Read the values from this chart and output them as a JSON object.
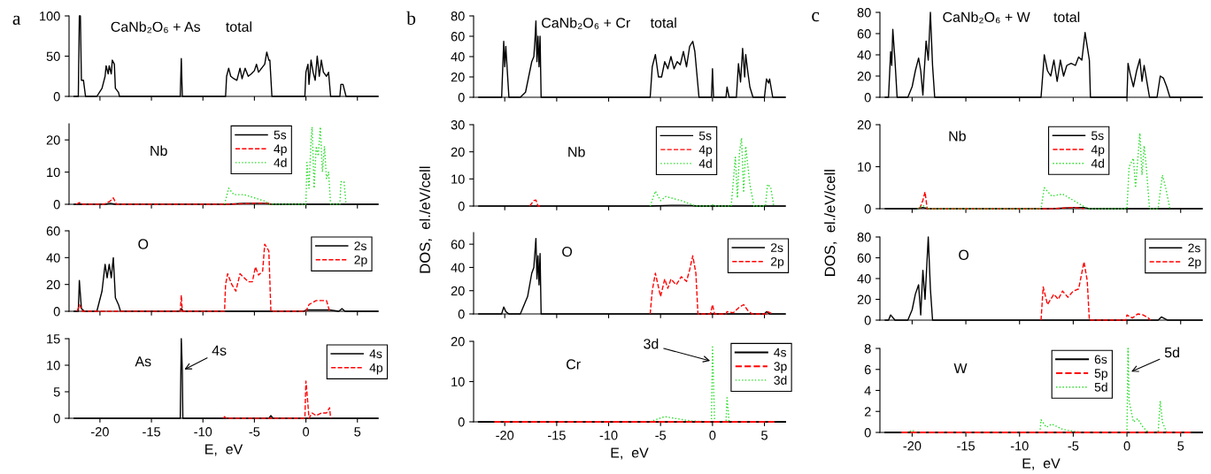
{
  "chart_data": [
    {
      "type": "line",
      "xlim": [
        -23,
        7
      ],
      "xticks": [
        -20,
        -15,
        -10,
        -5,
        0,
        5
      ],
      "ylim": [
        0,
        100
      ],
      "yticks": [
        0,
        50,
        100
      ],
      "tick_labels": "y",
      "annotations": [
        "a",
        "CaNb₂O₆ + As",
        "total"
      ],
      "series": [
        {
          "color": "#000000",
          "line_style": "solid",
          "x": [
            -22.5,
            -22.1,
            -22.0,
            -21.9,
            -21.8,
            -21.6,
            -21.4,
            -20.3,
            -19.8,
            -19.5,
            -19.4,
            -19.2,
            -19.1,
            -18.9,
            -18.8,
            -18.6,
            -18.5,
            -18.2,
            -18.1,
            -12.2,
            -12.1,
            -12.0,
            -7.8,
            -7.7,
            -7.5,
            -7.3,
            -7.0,
            -6.7,
            -6.4,
            -6.2,
            -5.9,
            -5.6,
            -5.3,
            -5.0,
            -4.8,
            -4.6,
            -4.3,
            -4.0,
            -3.8,
            -3.6,
            -3.5,
            -3.3,
            -0.1,
            0.0,
            0.2,
            0.3,
            0.5,
            0.7,
            0.9,
            1.1,
            1.3,
            1.5,
            1.7,
            2.0,
            2.2,
            2.4,
            3.3,
            3.4,
            3.6,
            3.9,
            7
          ],
          "values": [
            0,
            0,
            100,
            100,
            20,
            20,
            0,
            0,
            10,
            25,
            38,
            28,
            38,
            28,
            45,
            40,
            10,
            5,
            0,
            0,
            47,
            0,
            0,
            25,
            35,
            25,
            22,
            20,
            35,
            22,
            35,
            25,
            28,
            32,
            40,
            30,
            35,
            40,
            55,
            45,
            45,
            0,
            0,
            30,
            40,
            15,
            45,
            30,
            20,
            50,
            25,
            45,
            30,
            25,
            30,
            0,
            0,
            15,
            15,
            0,
            0
          ]
        }
      ]
    },
    {
      "type": "line",
      "xlim": [
        -23,
        7
      ],
      "xticks": [
        -20,
        -15,
        -10,
        -5,
        0,
        5
      ],
      "ylim": [
        0,
        25
      ],
      "yticks": [
        0,
        10,
        20
      ],
      "tick_labels": "y",
      "legend": "top right",
      "annotations": [
        "Nb"
      ],
      "series": [
        {
          "name": "5s",
          "color": "#000000",
          "line_style": "solid",
          "x": [
            -22.5,
            -19.5,
            -19,
            -18.5,
            -7.8,
            -6,
            -4,
            -3.3,
            7
          ],
          "values": [
            0,
            0,
            0.3,
            0,
            0,
            0.3,
            0.3,
            0,
            0
          ]
        },
        {
          "name": "4p",
          "color": "#ff0000",
          "line_style": "dashed",
          "x": [
            -22.3,
            -22,
            -21.7,
            -19.6,
            -19,
            -18.7,
            -18.4,
            -7.8,
            -5,
            -3.5,
            -3.3
          ],
          "values": [
            0,
            0.5,
            0,
            0,
            1,
            2,
            0,
            0,
            0.3,
            0.3,
            0
          ]
        },
        {
          "name": "4d",
          "color": "#22dd22",
          "line_style": "dotted",
          "x": [
            -7.9,
            -7.5,
            -7,
            -6,
            -5,
            -4,
            -3.5,
            0,
            0.1,
            0.3,
            0.5,
            0.6,
            0.8,
            1.0,
            1.2,
            1.4,
            1.6,
            1.8,
            2.0,
            2.2,
            2.4,
            3.3,
            3.4,
            3.7,
            3.9
          ],
          "values": [
            0,
            5,
            3,
            3,
            2,
            1,
            0,
            0,
            13,
            5,
            20,
            24,
            5,
            18,
            15,
            24,
            10,
            18,
            8,
            10,
            0,
            0,
            7,
            7,
            0
          ]
        }
      ]
    },
    {
      "type": "line",
      "xlim": [
        -23,
        7
      ],
      "xticks": [
        -20,
        -15,
        -10,
        -5,
        0,
        5
      ],
      "ylim": [
        0,
        60
      ],
      "yticks": [
        0,
        20,
        40,
        60
      ],
      "tick_labels": "y",
      "legend": "top right",
      "annotations": [
        "O"
      ],
      "series": [
        {
          "name": "2s",
          "color": "#000000",
          "line_style": "solid",
          "x": [
            -22.5,
            -22.1,
            -22,
            -21.8,
            -21.5,
            -20.3,
            -19.8,
            -19.5,
            -19.3,
            -19.1,
            -18.9,
            -18.7,
            -18.5,
            -18.2,
            -18,
            -12.3,
            -12.1,
            -11.9,
            -0.2,
            0,
            2.3,
            3.2,
            3.5,
            3.8,
            7
          ],
          "values": [
            0,
            0,
            23,
            2,
            0,
            0,
            15,
            35,
            25,
            35,
            25,
            40,
            10,
            5,
            0,
            0,
            2,
            0,
            0,
            1,
            1,
            0,
            2,
            0,
            0
          ]
        },
        {
          "name": "2p",
          "color": "#ff0000",
          "line_style": "dashed",
          "x": [
            -22.2,
            -22,
            -21.7,
            -12.2,
            -12.1,
            -12,
            -7.9,
            -7.8,
            -7.6,
            -7.2,
            -6.8,
            -6.4,
            -6,
            -5.6,
            -5.2,
            -4.9,
            -4.6,
            -4.2,
            -4,
            -3.6,
            -3.4,
            0,
            0.3,
            1,
            1.5,
            2,
            2.3
          ],
          "values": [
            0,
            5,
            0,
            0,
            12,
            0,
            0,
            20,
            28,
            20,
            15,
            28,
            25,
            22,
            22,
            33,
            27,
            30,
            50,
            45,
            0,
            0,
            5,
            8,
            8,
            8,
            0
          ]
        }
      ]
    },
    {
      "type": "line",
      "xlim": [
        -23,
        7
      ],
      "xticks": [
        -20,
        -15,
        -10,
        -5,
        0,
        5
      ],
      "ylim": [
        0,
        15
      ],
      "yticks": [
        0,
        5,
        10,
        15
      ],
      "xlabel": "E,  eV",
      "legend": "top right",
      "annotations": [
        "As",
        {
          "text": "4s",
          "x": -12,
          "y": 9
        }
      ],
      "series": [
        {
          "name": "4s",
          "color": "#000000",
          "line_style": "solid",
          "x": [
            -22.5,
            -12.2,
            -12.1,
            -12,
            -11.95,
            -3.6,
            -3.4,
            -3.2,
            7
          ],
          "values": [
            0,
            0,
            15,
            9,
            0,
            0,
            0.5,
            0,
            0
          ]
        },
        {
          "name": "4p",
          "color": "#ff0000",
          "line_style": "dashed",
          "x": [
            -8,
            -7.9,
            -7.7,
            -0.1,
            0,
            0.1,
            0.3,
            0.6,
            1,
            1.5,
            2,
            2.3,
            2.4
          ],
          "values": [
            0,
            0.3,
            0,
            0,
            7,
            5,
            0,
            1,
            0.5,
            1,
            1,
            2,
            0
          ]
        }
      ]
    },
    {
      "type": "line",
      "xlim": [
        -23,
        7
      ],
      "xticks": [
        -20,
        -15,
        -10,
        -5,
        0,
        5
      ],
      "ylim": [
        0,
        80
      ],
      "yticks": [
        0,
        20,
        40,
        60,
        80
      ],
      "tick_labels": "y",
      "annotations": [
        "b",
        "CaNb₂O₆ + Cr",
        "total"
      ],
      "series": [
        {
          "color": "#000000",
          "line_style": "solid",
          "x": [
            -22.5,
            -20.3,
            -20.1,
            -20.0,
            -19.9,
            -19.6,
            -18.5,
            -18,
            -17.7,
            -17.4,
            -17.2,
            -17.1,
            -17.0,
            -16.9,
            -16.8,
            -16.7,
            -16.6,
            -16.5,
            -6,
            -5.8,
            -5.5,
            -5.2,
            -4.9,
            -4.6,
            -4.3,
            -4,
            -3.7,
            -3.4,
            -3.1,
            -2.8,
            -2.5,
            -2.2,
            -1.9,
            -1.7,
            -1.3,
            -0.1,
            0,
            0.1,
            1.3,
            1.4,
            1.6,
            2.3,
            2.5,
            2.7,
            2.9,
            3.1,
            3.2,
            3.4,
            3.6,
            3.9,
            5.0,
            5.2,
            5.4,
            5.5,
            5.8,
            7
          ],
          "values": [
            0,
            0,
            55,
            30,
            50,
            0,
            0,
            5,
            20,
            35,
            40,
            55,
            75,
            35,
            60,
            30,
            60,
            0,
            0,
            30,
            42,
            20,
            20,
            35,
            28,
            40,
            28,
            35,
            32,
            45,
            30,
            50,
            55,
            45,
            0,
            0,
            28,
            0,
            0,
            10,
            0,
            0,
            33,
            15,
            48,
            20,
            42,
            25,
            10,
            0,
            0,
            18,
            14,
            18,
            0,
            0
          ]
        }
      ]
    },
    {
      "type": "line",
      "xlim": [
        -23,
        7
      ],
      "xticks": [
        -20,
        -15,
        -10,
        -5,
        0,
        5
      ],
      "ylim": [
        0,
        30
      ],
      "yticks": [
        0,
        10,
        20,
        30
      ],
      "tick_labels": "y",
      "ylabel": "DOS,  el./eV/cell",
      "legend": "top right",
      "annotations": [
        "Nb"
      ],
      "series": [
        {
          "name": "5s",
          "color": "#000000",
          "line_style": "solid",
          "x": [
            -22.5,
            -6,
            -4,
            -3,
            -2,
            -1.5,
            7
          ],
          "values": [
            0,
            0,
            0.3,
            0.3,
            0.2,
            0,
            0
          ]
        },
        {
          "name": "4p",
          "color": "#ff0000",
          "line_style": "dashed",
          "x": [
            -17.6,
            -17.2,
            -17,
            -16.8,
            -16.6
          ],
          "values": [
            0,
            2,
            2.2,
            0,
            0
          ]
        },
        {
          "name": "4d",
          "color": "#22dd22",
          "line_style": "dotted",
          "x": [
            -6,
            -5.5,
            -5,
            -4.5,
            -4,
            -3,
            -2,
            -1.5,
            -0.2,
            0,
            0.2,
            1.8,
            2.2,
            2.4,
            2.6,
            2.8,
            3,
            3.2,
            3.4,
            3.6,
            4,
            5.1,
            5.3,
            5.6,
            5.9
          ],
          "values": [
            0,
            5.5,
            2,
            3.5,
            3,
            2,
            0.5,
            0,
            0,
            0.5,
            0,
            0,
            18,
            3,
            20,
            25,
            5,
            22,
            15,
            8,
            0,
            0,
            8,
            7,
            0
          ]
        }
      ]
    },
    {
      "type": "line",
      "xlim": [
        -23,
        7
      ],
      "xticks": [
        -20,
        -15,
        -10,
        -5,
        0,
        5
      ],
      "ylim": [
        0,
        70
      ],
      "yticks": [
        0,
        20,
        40,
        60
      ],
      "tick_labels": "y",
      "legend": "top right",
      "annotations": [
        "O"
      ],
      "series": [
        {
          "name": "2s",
          "color": "#000000",
          "line_style": "solid",
          "x": [
            -22.5,
            -20.3,
            -20.1,
            -19.9,
            -19.6,
            -18.5,
            -17.8,
            -17.4,
            -17.2,
            -17.0,
            -16.9,
            -16.8,
            -16.7,
            -16.6,
            -16.5,
            5,
            5.2,
            5.5,
            7
          ],
          "values": [
            0,
            0,
            6,
            2,
            0,
            0,
            15,
            35,
            40,
            65,
            30,
            50,
            25,
            52,
            0,
            0,
            2,
            0,
            0
          ]
        },
        {
          "name": "2p",
          "color": "#ff0000",
          "line_style": "dashed",
          "x": [
            -6,
            -5.8,
            -5.5,
            -5.0,
            -4.6,
            -4.3,
            -4,
            -3.5,
            -3,
            -2.5,
            -2.2,
            -1.9,
            -1.6,
            -1.4,
            -0.2,
            0,
            0.2,
            1.3,
            1.4,
            2,
            2.6,
            3,
            3.4,
            3.8,
            5.2,
            5.3,
            5.8
          ],
          "values": [
            0,
            20,
            35,
            15,
            30,
            22,
            30,
            25,
            32,
            28,
            38,
            50,
            35,
            0,
            0,
            8,
            0,
            0,
            2,
            1,
            6,
            8,
            3,
            0,
            0,
            2,
            0
          ]
        }
      ]
    },
    {
      "type": "line",
      "xlim": [
        -23,
        7
      ],
      "xticks": [
        -20,
        -15,
        -10,
        -5,
        0,
        5
      ],
      "ylim": [
        0,
        20
      ],
      "yticks": [
        0,
        10,
        20
      ],
      "xlabel": "E,  eV",
      "legend": "top right",
      "annotations": [
        "Cr",
        {
          "text": "3d",
          "x": 0,
          "y": 15
        }
      ],
      "series": [
        {
          "name": "4s",
          "color": "#000000",
          "line_style": "solid",
          "x": [
            -22.5,
            7
          ],
          "values": [
            0,
            0
          ]
        },
        {
          "name": "3p",
          "color": "#ff0000",
          "line_style": "dashed",
          "x": [
            -21,
            6
          ],
          "values": [
            0,
            0
          ]
        },
        {
          "name": "3d",
          "color": "#22dd22",
          "line_style": "dotted",
          "x": [
            -6,
            -5.5,
            -4.6,
            -3,
            -2,
            -0.1,
            0,
            0.2,
            1.3,
            1.4,
            1.6
          ],
          "values": [
            0,
            0.5,
            1.3,
            0.6,
            0.2,
            0,
            19,
            0,
            0,
            6,
            0
          ]
        }
      ]
    },
    {
      "type": "line",
      "xlim": [
        -23,
        7
      ],
      "xticks": [
        -20,
        -15,
        -10,
        -5,
        0,
        5
      ],
      "ylim": [
        0,
        80
      ],
      "yticks": [
        0,
        20,
        40,
        60,
        80
      ],
      "tick_labels": "y",
      "annotations": [
        "c",
        "CaNb₂O₆ + W",
        "total"
      ],
      "series": [
        {
          "color": "#000000",
          "line_style": "solid",
          "x": [
            -22.5,
            -22.2,
            -22,
            -21.9,
            -21.8,
            -21.6,
            -21.4,
            -20.4,
            -20,
            -19.7,
            -19.4,
            -19.2,
            -19,
            -18.9,
            -18.7,
            -18.5,
            -18.3,
            -18.1,
            -17.9,
            -8,
            -7.7,
            -7.4,
            -7.1,
            -6.8,
            -6.5,
            -6.2,
            -5.9,
            -5.6,
            -5.2,
            -4.8,
            -4.5,
            -4.2,
            -3.9,
            -3.5,
            -3.4,
            0,
            0.1,
            0.3,
            0.6,
            0.9,
            1.2,
            1.4,
            1.6,
            1.9,
            2.1,
            2.8,
            3.1,
            3.4,
            3.7,
            4.0,
            7
          ],
          "values": [
            0,
            0,
            43,
            30,
            64,
            35,
            0,
            0,
            10,
            25,
            37,
            25,
            2,
            20,
            53,
            35,
            80,
            30,
            0,
            0,
            40,
            25,
            20,
            35,
            15,
            35,
            20,
            30,
            32,
            30,
            38,
            35,
            61,
            35,
            0,
            0,
            32,
            22,
            10,
            25,
            36,
            15,
            30,
            12,
            0,
            0,
            20,
            18,
            10,
            0,
            0
          ]
        }
      ]
    },
    {
      "type": "line",
      "xlim": [
        -23,
        7
      ],
      "xticks": [
        -20,
        -15,
        -10,
        -5,
        0,
        5
      ],
      "ylim": [
        0,
        20
      ],
      "yticks": [
        0,
        10,
        20
      ],
      "tick_labels": "y",
      "ylabel": "DOS,  el./eV/cell",
      "legend": "top right",
      "annotations": [
        "Nb"
      ],
      "series": [
        {
          "name": "5s",
          "color": "#000000",
          "line_style": "solid",
          "x": [
            -22.5,
            -19.6,
            -19,
            -18.5,
            -7,
            -5,
            -4,
            -3.5,
            7
          ],
          "values": [
            0,
            0,
            0.3,
            0,
            0,
            0.3,
            0.3,
            0,
            0
          ]
        },
        {
          "name": "4p",
          "color": "#ff0000",
          "line_style": "dashed",
          "x": [
            -19.3,
            -19,
            -18.8,
            -18.6,
            -7,
            -5,
            -4
          ],
          "values": [
            0,
            2,
            4,
            0,
            0,
            0.3,
            0
          ]
        },
        {
          "name": "4d",
          "color": "#22dd22",
          "line_style": "dotted",
          "x": [
            -19.5,
            -19,
            -18.5,
            -8,
            -7.7,
            -7,
            -6,
            -5,
            -4,
            -3.5,
            0,
            0.2,
            0.6,
            0.8,
            1.2,
            1.4,
            1.6,
            1.8,
            2.1,
            2.9,
            3.3,
            3.6,
            4
          ],
          "values": [
            0,
            0.8,
            0,
            0,
            5,
            3,
            3.5,
            2,
            0.5,
            0,
            0,
            10,
            12,
            5,
            18,
            8,
            15,
            10,
            0,
            0,
            8,
            5,
            0
          ]
        }
      ]
    },
    {
      "type": "line",
      "xlim": [
        -23,
        7
      ],
      "xticks": [
        -20,
        -15,
        -10,
        -5,
        0,
        5
      ],
      "ylim": [
        0,
        80
      ],
      "yticks": [
        0,
        20,
        40,
        60,
        80
      ],
      "tick_labels": "y",
      "legend": "top right",
      "annotations": [
        "O"
      ],
      "series": [
        {
          "name": "2s",
          "color": "#000000",
          "line_style": "solid",
          "x": [
            -22.5,
            -22.2,
            -22,
            -21.6,
            -20.4,
            -20,
            -19.7,
            -19.4,
            -19.2,
            -19,
            -18.8,
            -18.5,
            -18.3,
            -18.1,
            2.9,
            3.2,
            3.8,
            7
          ],
          "values": [
            0,
            0,
            5,
            0,
            0,
            10,
            25,
            34,
            5,
            48,
            20,
            80,
            30,
            0,
            0,
            3,
            0,
            0
          ]
        },
        {
          "name": "2p",
          "color": "#ff0000",
          "line_style": "dashed",
          "x": [
            -8,
            -7.8,
            -7.4,
            -6.8,
            -6.4,
            -6,
            -5.5,
            -5,
            -4.5,
            -4,
            -3.7,
            -3.5,
            -0.1,
            0,
            0.5,
            1.0,
            1.5,
            2,
            2.2
          ],
          "values": [
            0,
            32,
            15,
            25,
            20,
            28,
            22,
            28,
            30,
            56,
            38,
            0,
            0,
            5,
            2,
            6,
            5,
            2,
            0
          ]
        }
      ]
    },
    {
      "type": "line",
      "xlim": [
        -23,
        7
      ],
      "xticks": [
        -20,
        -15,
        -10,
        -5,
        0,
        5
      ],
      "ylim": [
        0,
        8
      ],
      "yticks": [
        0,
        2,
        4,
        6,
        8
      ],
      "xlabel": "E,  eV",
      "legend": "top right",
      "annotations": [
        "W",
        {
          "text": "5d",
          "x": 0.2,
          "y": 5.7
        }
      ],
      "series": [
        {
          "name": "6s",
          "color": "#000000",
          "line_style": "solid",
          "x": [
            -22.5,
            7
          ],
          "values": [
            0,
            0
          ]
        },
        {
          "name": "5p",
          "color": "#ff0000",
          "line_style": "dashed",
          "x": [
            -21,
            6
          ],
          "values": [
            0,
            0
          ]
        },
        {
          "name": "5d",
          "color": "#22dd22",
          "line_style": "dotted",
          "x": [
            -20.5,
            -20,
            -19.5,
            -8.1,
            -8,
            -7.5,
            -7,
            -6,
            -5,
            -4,
            0,
            0.1,
            0.2,
            0.4,
            0.6,
            1,
            1.5,
            2,
            2.9,
            3.1,
            3.3,
            3.7
          ],
          "values": [
            0,
            0.2,
            0,
            0,
            1.2,
            0.5,
            0.8,
            0.3,
            0.1,
            0,
            0,
            8,
            3,
            2,
            1,
            1.3,
            0.5,
            0,
            0,
            3,
            1,
            0
          ]
        }
      ]
    }
  ]
}
